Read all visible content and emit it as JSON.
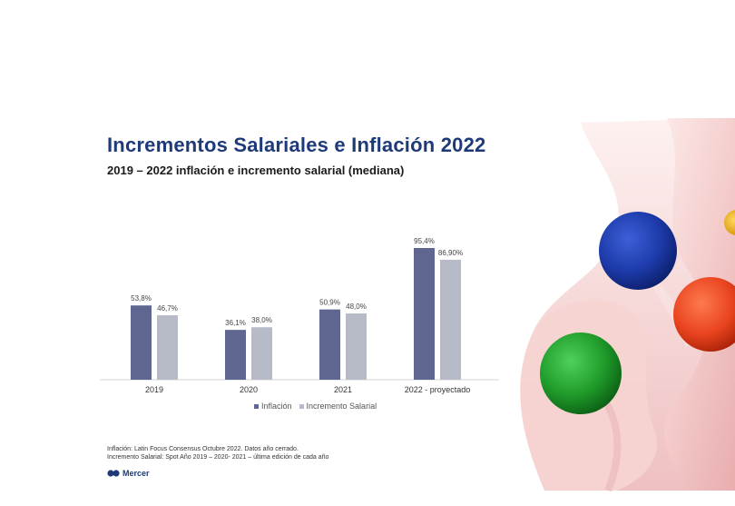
{
  "title": "Incrementos Salariales e Inflación 2022",
  "subtitle": "2019 – 2022 inflación e incremento salarial (mediana)",
  "footnotes": [
    "Inflación: Latin Focus Consensus Octubre  2022. Datos año cerrado.",
    "Incremento Salarial: Spot Año 2019 – 2020- 2021 – última edición de cada año"
  ],
  "brand": {
    "name": "Mercer",
    "icon": "mercer-logo-icon"
  },
  "colors": {
    "inflacion": "#5f6790",
    "incremento": "#b7bac7",
    "title": "#1e3a78",
    "ball_blue": "#1c3aa8",
    "ball_red": "#e8431e",
    "ball_green": "#1f9a2a",
    "ball_yellow": "#f0b51d"
  },
  "chart_data": {
    "type": "bar",
    "categories": [
      "2019",
      "2020",
      "2021",
      "2022 - proyectado"
    ],
    "series": [
      {
        "name": "Inflación",
        "values": [
          53.8,
          36.1,
          50.9,
          95.4
        ],
        "labels": [
          "53,8%",
          "36,1%",
          "50,9%",
          "95,4%"
        ]
      },
      {
        "name": "Incremento Salarial",
        "values": [
          46.7,
          38.0,
          48.0,
          86.9
        ],
        "labels": [
          "46,7%",
          "38,0%",
          "48,0%",
          "86,90%"
        ]
      }
    ],
    "ylim": [
      0,
      100
    ],
    "grid": false,
    "legend": "bottom-center",
    "title": "",
    "xlabel": "",
    "ylabel": ""
  }
}
